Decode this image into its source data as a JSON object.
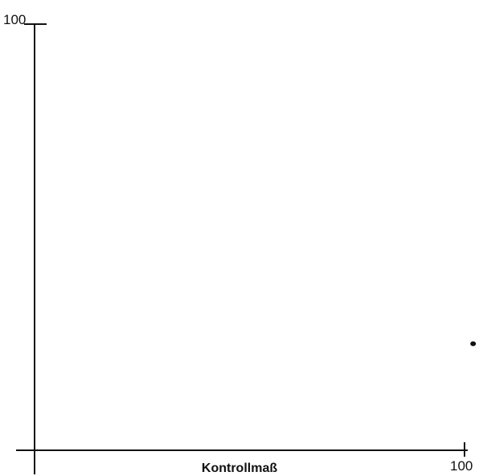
{
  "chart_data": {
    "type": "scatter",
    "title": "",
    "xlabel": "Kontrollmaß",
    "ylabel": "",
    "xlim": [
      0,
      100
    ],
    "ylim": [
      0,
      100
    ],
    "x_tick_labels": [
      "100"
    ],
    "y_tick_labels": [
      "100"
    ],
    "grid": false,
    "legend": "none",
    "series": [
      {
        "x": [
          102
        ],
        "y": [
          25
        ]
      }
    ],
    "colors": {
      "axis": "#111111",
      "point": "#111111"
    }
  }
}
